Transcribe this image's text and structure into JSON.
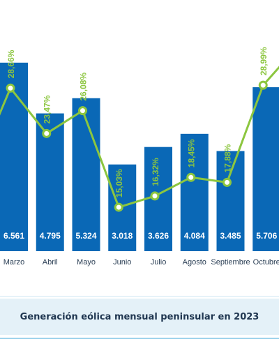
{
  "caption": "Generación eólica mensual peninsular en 2023",
  "colors": {
    "bar": "#0a68b6",
    "line": "#8cc63f",
    "bar_label": "#ffffff",
    "caption_bg": "#e4f1f8"
  },
  "chart_data": {
    "type": "bar",
    "categories": [
      "Marzo",
      "Abril",
      "Mayo",
      "Junio",
      "Julio",
      "Agosto",
      "Septiembre",
      "Octubre"
    ],
    "series": [
      {
        "values": [
          6561,
          4795,
          5324,
          3018,
          3626,
          4084,
          3485,
          5706
        ],
        "labels": [
          "6.561",
          "4.795",
          "5.324",
          "3.018",
          "3.626",
          "4.084",
          "3.485",
          "5.706"
        ]
      },
      {
        "type": "line",
        "values": [
          28.66,
          23.47,
          26.08,
          15.03,
          16.32,
          18.45,
          17.88,
          28.99
        ],
        "labels": [
          "28,66%",
          "23,47%",
          "26,08%",
          "15,03%",
          "16,32%",
          "18,45%",
          "17,88%",
          "28,99%"
        ]
      }
    ],
    "title": "",
    "xlabel": "",
    "ylabel": "",
    "grid": false,
    "legend": "none"
  }
}
